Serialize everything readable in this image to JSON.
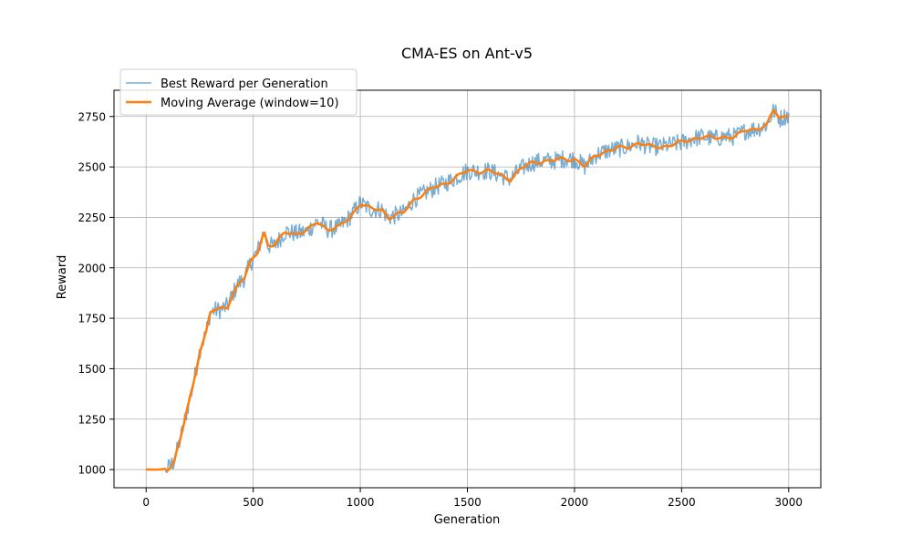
{
  "chart_data": {
    "type": "line",
    "title": "CMA-ES on Ant-v5",
    "xlabel": "Generation",
    "ylabel": "Reward",
    "xlim": [
      -150,
      3150
    ],
    "ylim": [
      910,
      2880
    ],
    "x_ticks": [
      0,
      500,
      1000,
      1500,
      2000,
      2500,
      3000
    ],
    "y_ticks": [
      1000,
      1250,
      1500,
      1750,
      2000,
      2250,
      2500,
      2750
    ],
    "grid": true,
    "legend": "top-left",
    "series": [
      {
        "name": "Best Reward per Generation",
        "color": "#1f77b4",
        "alpha": 0.6,
        "noise_amplitude": 45,
        "x": [
          0,
          60,
          100,
          130,
          160,
          190,
          220,
          250,
          280,
          300,
          320,
          340,
          360,
          380,
          400,
          430,
          460,
          490,
          520,
          550,
          570,
          600,
          650,
          700,
          750,
          800,
          850,
          900,
          950,
          1000,
          1050,
          1100,
          1130,
          1200,
          1250,
          1300,
          1350,
          1400,
          1450,
          1500,
          1550,
          1600,
          1650,
          1700,
          1750,
          1800,
          1850,
          1900,
          1950,
          2000,
          2050,
          2100,
          2150,
          2200,
          2250,
          2300,
          2350,
          2400,
          2450,
          2500,
          2550,
          2600,
          2650,
          2700,
          2750,
          2800,
          2850,
          2900,
          2930,
          2960,
          3000
        ],
        "values": [
          1000,
          1000,
          1005,
          1040,
          1150,
          1290,
          1420,
          1590,
          1680,
          1780,
          1790,
          1790,
          1800,
          1810,
          1860,
          1920,
          1950,
          2030,
          2080,
          2180,
          2110,
          2110,
          2180,
          2170,
          2180,
          2230,
          2190,
          2200,
          2250,
          2320,
          2290,
          2290,
          2250,
          2270,
          2340,
          2370,
          2400,
          2420,
          2450,
          2480,
          2480,
          2480,
          2460,
          2440,
          2490,
          2520,
          2530,
          2530,
          2540,
          2540,
          2500,
          2560,
          2580,
          2590,
          2600,
          2620,
          2600,
          2600,
          2610,
          2620,
          2640,
          2650,
          2640,
          2650,
          2650,
          2680,
          2690,
          2710,
          2780,
          2740,
          2760
        ]
      },
      {
        "name": "Moving Average (window=10)",
        "color": "#ff7f0e",
        "noise_amplitude": 12
      }
    ]
  }
}
